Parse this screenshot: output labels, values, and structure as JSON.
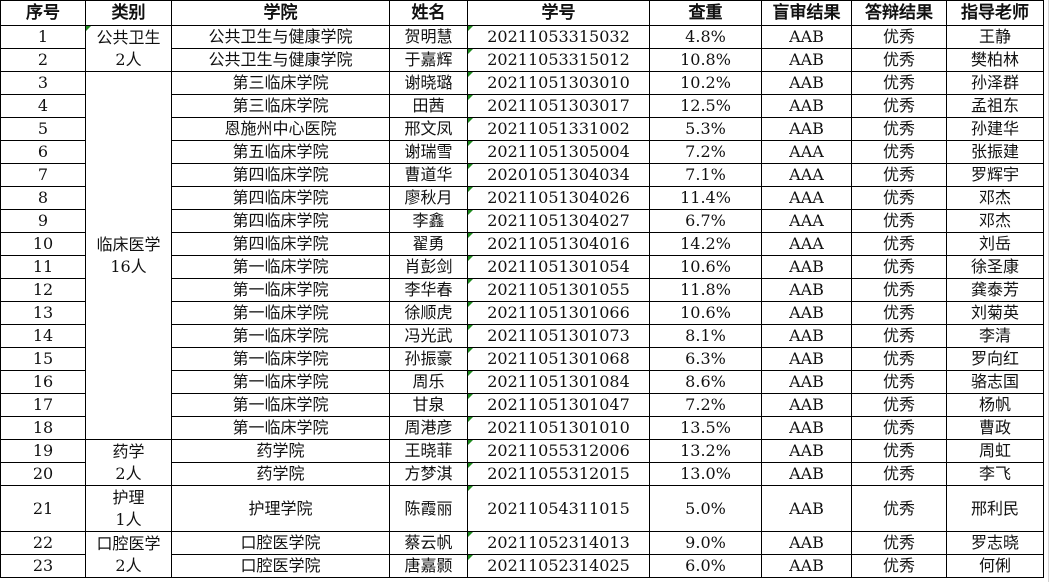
{
  "headers": [
    "序号",
    "类别",
    "学院",
    "姓名",
    "学号",
    "查重",
    "盲审结果",
    "答辩结果",
    "指导老师"
  ],
  "categories": [
    {
      "label": "公共卫生\n2人",
      "line1": "公共卫生",
      "line2": "2人",
      "start": 1,
      "span": 2
    },
    {
      "label": "临床医学\n16人",
      "line1": "临床医学",
      "line2": "16人",
      "start": 3,
      "span": 16
    },
    {
      "label": "药学\n2人",
      "line1": "药学",
      "line2": "2人",
      "start": 19,
      "span": 2
    },
    {
      "label": "护理\n1人",
      "line1": "护理",
      "line2": "1人",
      "start": 21,
      "span": 1
    },
    {
      "label": "口腔医学\n2人",
      "line1": "口腔医学",
      "line2": "2人",
      "start": 22,
      "span": 2
    }
  ],
  "rows": [
    [
      "1",
      "公共卫生与健康学院",
      "贺明慧",
      "20211053315032",
      "4.8%",
      "AAB",
      "优秀",
      "王静"
    ],
    [
      "2",
      "公共卫生与健康学院",
      "于嘉辉",
      "20211053315012",
      "10.8%",
      "AAB",
      "优秀",
      "樊柏林"
    ],
    [
      "3",
      "第三临床学院",
      "谢晓璐",
      "20211051303010",
      "10.2%",
      "AAB",
      "优秀",
      "孙泽群"
    ],
    [
      "4",
      "第三临床学院",
      "田茜",
      "20211051303017",
      "12.5%",
      "AAB",
      "优秀",
      "孟祖东"
    ],
    [
      "5",
      "恩施州中心医院",
      "邢文凤",
      "20211051331002",
      "5.3%",
      "AAB",
      "优秀",
      "孙建华"
    ],
    [
      "6",
      "第五临床学院",
      "谢瑞雪",
      "20211051305004",
      "7.2%",
      "AAA",
      "优秀",
      "张振建"
    ],
    [
      "7",
      "第四临床学院",
      "曹道华",
      "20201051304034",
      "7.1%",
      "AAA",
      "优秀",
      "罗辉宇"
    ],
    [
      "8",
      "第四临床学院",
      "廖秋月",
      "20211051304026",
      "11.4%",
      "AAA",
      "优秀",
      "邓杰"
    ],
    [
      "9",
      "第四临床学院",
      "李鑫",
      "20211051304027",
      "6.7%",
      "AAA",
      "优秀",
      "邓杰"
    ],
    [
      "10",
      "第四临床学院",
      "翟勇",
      "20211051304016",
      "14.2%",
      "AAA",
      "优秀",
      "刘岳"
    ],
    [
      "11",
      "第一临床学院",
      "肖彭剑",
      "20211051301054",
      "10.6%",
      "AAB",
      "优秀",
      "徐圣康"
    ],
    [
      "12",
      "第一临床学院",
      "李华春",
      "20211051301055",
      "11.8%",
      "AAB",
      "优秀",
      "龚泰芳"
    ],
    [
      "13",
      "第一临床学院",
      "徐顺虎",
      "20211051301066",
      "10.6%",
      "AAB",
      "优秀",
      "刘菊英"
    ],
    [
      "14",
      "第一临床学院",
      "冯光武",
      "20211051301073",
      "8.1%",
      "AAB",
      "优秀",
      "李清"
    ],
    [
      "15",
      "第一临床学院",
      "孙振豪",
      "20211051301068",
      "6.3%",
      "AAB",
      "优秀",
      "罗向红"
    ],
    [
      "16",
      "第一临床学院",
      "周乐",
      "20211051301084",
      "8.6%",
      "AAB",
      "优秀",
      "骆志国"
    ],
    [
      "17",
      "第一临床学院",
      "甘泉",
      "20211051301047",
      "7.2%",
      "AAB",
      "优秀",
      "杨帆"
    ],
    [
      "18",
      "第一临床学院",
      "周港彦",
      "20211051301010",
      "13.5%",
      "AAB",
      "优秀",
      "曹政"
    ],
    [
      "19",
      "药学院",
      "王晓菲",
      "20211055312006",
      "13.2%",
      "AAB",
      "优秀",
      "周虹"
    ],
    [
      "20",
      "药学院",
      "方梦淇",
      "20211055312015",
      "13.0%",
      "AAB",
      "优秀",
      "李飞"
    ],
    [
      "21",
      "护理学院",
      "陈霞丽",
      "20211054311015",
      "5.0%",
      "AAB",
      "优秀",
      "邢利民"
    ],
    [
      "22",
      "口腔医学院",
      "蔡云帆",
      "20211052314013",
      "9.0%",
      "AAB",
      "优秀",
      "罗志晓"
    ],
    [
      "23",
      "口腔医学院",
      "唐嘉颢",
      "20211052314025",
      "6.0%",
      "AAB",
      "优秀",
      "何俐"
    ]
  ],
  "colors": {
    "grid": "#d4d4d4",
    "border": "#000000",
    "comment_marker": "#1e8a1e"
  }
}
